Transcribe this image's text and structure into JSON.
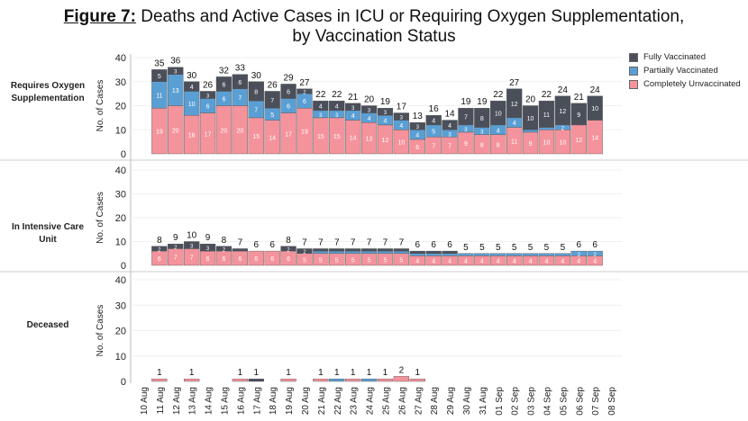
{
  "title": {
    "label": "Figure 7:",
    "text": " Deaths and Active Cases in ICU or Requiring Oxygen Supplementation,",
    "line2": "by Vaccination Status"
  },
  "legend": [
    {
      "name": "Fully Vaccinated",
      "color": "#4a4f5a"
    },
    {
      "name": "Partially Vaccinated",
      "color": "#5a9fd4"
    },
    {
      "name": "Completely Unvaccinated",
      "color": "#f4939c"
    }
  ],
  "chart_data": {
    "type": "bar",
    "stacked": true,
    "categories": [
      "10 Aug",
      "11 Aug",
      "12 Aug",
      "13 Aug",
      "14 Aug",
      "15 Aug",
      "16 Aug",
      "17 Aug",
      "18 Aug",
      "19 Aug",
      "20 Aug",
      "21 Aug",
      "22 Aug",
      "23 Aug",
      "24 Aug",
      "25 Aug",
      "26 Aug",
      "27 Aug",
      "28 Aug",
      "29 Aug",
      "30 Aug",
      "31 Aug",
      "01 Sep",
      "02 Sep",
      "03 Sep",
      "04 Sep",
      "05 Sep",
      "06 Sep",
      "07 Sep",
      "08 Sep"
    ],
    "ylabel": "No. of Cases",
    "ylim": [
      0,
      40
    ],
    "yticks": [
      0,
      10,
      20,
      30,
      40
    ],
    "panels": [
      {
        "name": "Requires Oxygen Supplementation",
        "series": [
          {
            "name": "Completely Unvaccinated",
            "values": [
              null,
              19,
              20,
              16,
              17,
              20,
              20,
              15,
              14,
              17,
              19,
              15,
              15,
              14,
              13,
              12,
              10,
              6,
              7,
              7,
              9,
              8,
              8,
              11,
              9,
              10,
              10,
              12,
              14,
              null
            ]
          },
          {
            "name": "Partially Vaccinated",
            "values": [
              null,
              11,
              13,
              10,
              6,
              6,
              7,
              7,
              5,
              6,
              6,
              3,
              3,
              4,
              4,
              4,
              4,
              4,
              5,
              3,
              3,
              3,
              4,
              4,
              1,
              1,
              2,
              0,
              0,
              null
            ]
          },
          {
            "name": "Fully Vaccinated",
            "values": [
              null,
              5,
              3,
              4,
              3,
              6,
              6,
              8,
              7,
              6,
              2,
              4,
              4,
              3,
              3,
              3,
              3,
              3,
              4,
              4,
              7,
              8,
              10,
              12,
              10,
              11,
              12,
              9,
              10,
              null
            ]
          }
        ],
        "totals": [
          null,
          35,
          36,
          30,
          26,
          32,
          33,
          30,
          26,
          29,
          27,
          22,
          22,
          21,
          20,
          19,
          17,
          13,
          16,
          14,
          19,
          19,
          22,
          27,
          20,
          22,
          24,
          21,
          24,
          null
        ]
      },
      {
        "name": "In Intensive Care Unit",
        "series": [
          {
            "name": "Completely Unvaccinated",
            "values": [
              null,
              6,
              7,
              7,
              6,
              6,
              6,
              6,
              6,
              6,
              5,
              5,
              5,
              5,
              5,
              5,
              5,
              4,
              4,
              4,
              4,
              4,
              4,
              4,
              4,
              4,
              4,
              4,
              4,
              null
            ]
          },
          {
            "name": "Partially Vaccinated",
            "values": [
              null,
              0,
              0,
              0,
              0,
              0,
              0,
              0,
              0,
              0,
              0,
              1,
              1,
              1,
              1,
              1,
              1,
              1,
              1,
              1,
              1,
              1,
              1,
              1,
              1,
              1,
              1,
              2,
              2,
              null
            ]
          },
          {
            "name": "Fully Vaccinated",
            "values": [
              null,
              2,
              2,
              3,
              3,
              2,
              1,
              0,
              0,
              2,
              2,
              1,
              1,
              1,
              1,
              1,
              1,
              1,
              1,
              1,
              0,
              0,
              0,
              0,
              0,
              0,
              0,
              0,
              0,
              null
            ]
          }
        ],
        "totals": [
          null,
          8,
          9,
          10,
          9,
          8,
          7,
          6,
          6,
          8,
          7,
          7,
          7,
          7,
          7,
          7,
          7,
          6,
          6,
          6,
          5,
          5,
          5,
          5,
          5,
          5,
          5,
          6,
          6,
          null
        ]
      },
      {
        "name": "Deceased",
        "series": [
          {
            "name": "Completely Unvaccinated",
            "values": [
              null,
              1,
              0,
              1,
              0,
              0,
              1,
              0,
              0,
              1,
              0,
              1,
              0,
              1,
              0,
              1,
              2,
              1,
              null,
              null,
              null,
              null,
              null,
              null,
              null,
              null,
              null,
              null,
              null,
              null
            ]
          },
          {
            "name": "Partially Vaccinated",
            "values": [
              null,
              0,
              0,
              0,
              0,
              0,
              0,
              0,
              0,
              0,
              0,
              0,
              1,
              0,
              1,
              0,
              0,
              0,
              null,
              null,
              null,
              null,
              null,
              null,
              null,
              null,
              null,
              null,
              null,
              null
            ]
          },
          {
            "name": "Fully Vaccinated",
            "values": [
              null,
              0,
              0,
              0,
              0,
              0,
              0,
              1,
              0,
              0,
              0,
              0,
              0,
              0,
              0,
              0,
              0,
              0,
              null,
              null,
              null,
              null,
              null,
              null,
              null,
              null,
              null,
              null,
              null,
              null
            ]
          }
        ],
        "totals": [
          null,
          1,
          null,
          1,
          null,
          null,
          1,
          1,
          null,
          1,
          null,
          1,
          1,
          1,
          1,
          1,
          2,
          1,
          null,
          null,
          null,
          null,
          null,
          null,
          null,
          null,
          null,
          null,
          null,
          null
        ]
      }
    ],
    "legend_position": "top-right",
    "grid": true
  }
}
